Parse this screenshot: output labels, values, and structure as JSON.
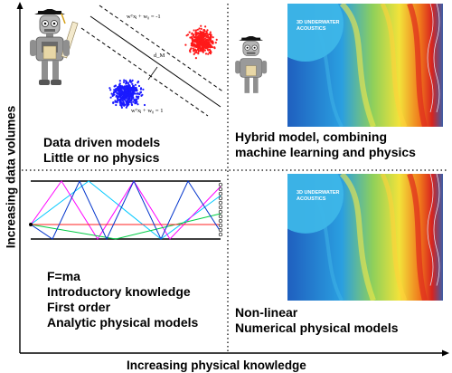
{
  "axes": {
    "x_label": "Increasing physical knowledge",
    "y_label": "Increasing data volumes"
  },
  "quadrants": {
    "top_left": {
      "lines": [
        "Data driven models",
        "Little or no physics"
      ],
      "eq_top": "wᵀxⱼ + w₀ = -1",
      "eq_bottom": "wᵀxⱼ + w₀ = 1",
      "margin_label": "d_M"
    },
    "top_right": {
      "lines": [
        "Hybrid model, combining",
        "machine learning and physics"
      ],
      "image_badge": [
        "3D UNDERWATER",
        "ACOUSTICS"
      ]
    },
    "bottom_left": {
      "lines": [
        "F=ma",
        "Introductory knowledge",
        "First order",
        "Analytic physical models"
      ]
    },
    "bottom_right": {
      "lines": [
        "Non-linear",
        "Numerical physical models"
      ],
      "image_badge": [
        "3D UNDERWATER",
        "ACOUSTICS"
      ]
    }
  },
  "colors": {
    "cluster_red": "#ff1a1a",
    "cluster_blue": "#1a1aff",
    "ray_colors": [
      "#00c8ff",
      "#ff00ff",
      "#00cc44",
      "#ff2020",
      "#0033cc"
    ],
    "divider": "#000000"
  },
  "icons": [
    "robot-graduate-icon",
    "underwater-acoustics-image"
  ]
}
